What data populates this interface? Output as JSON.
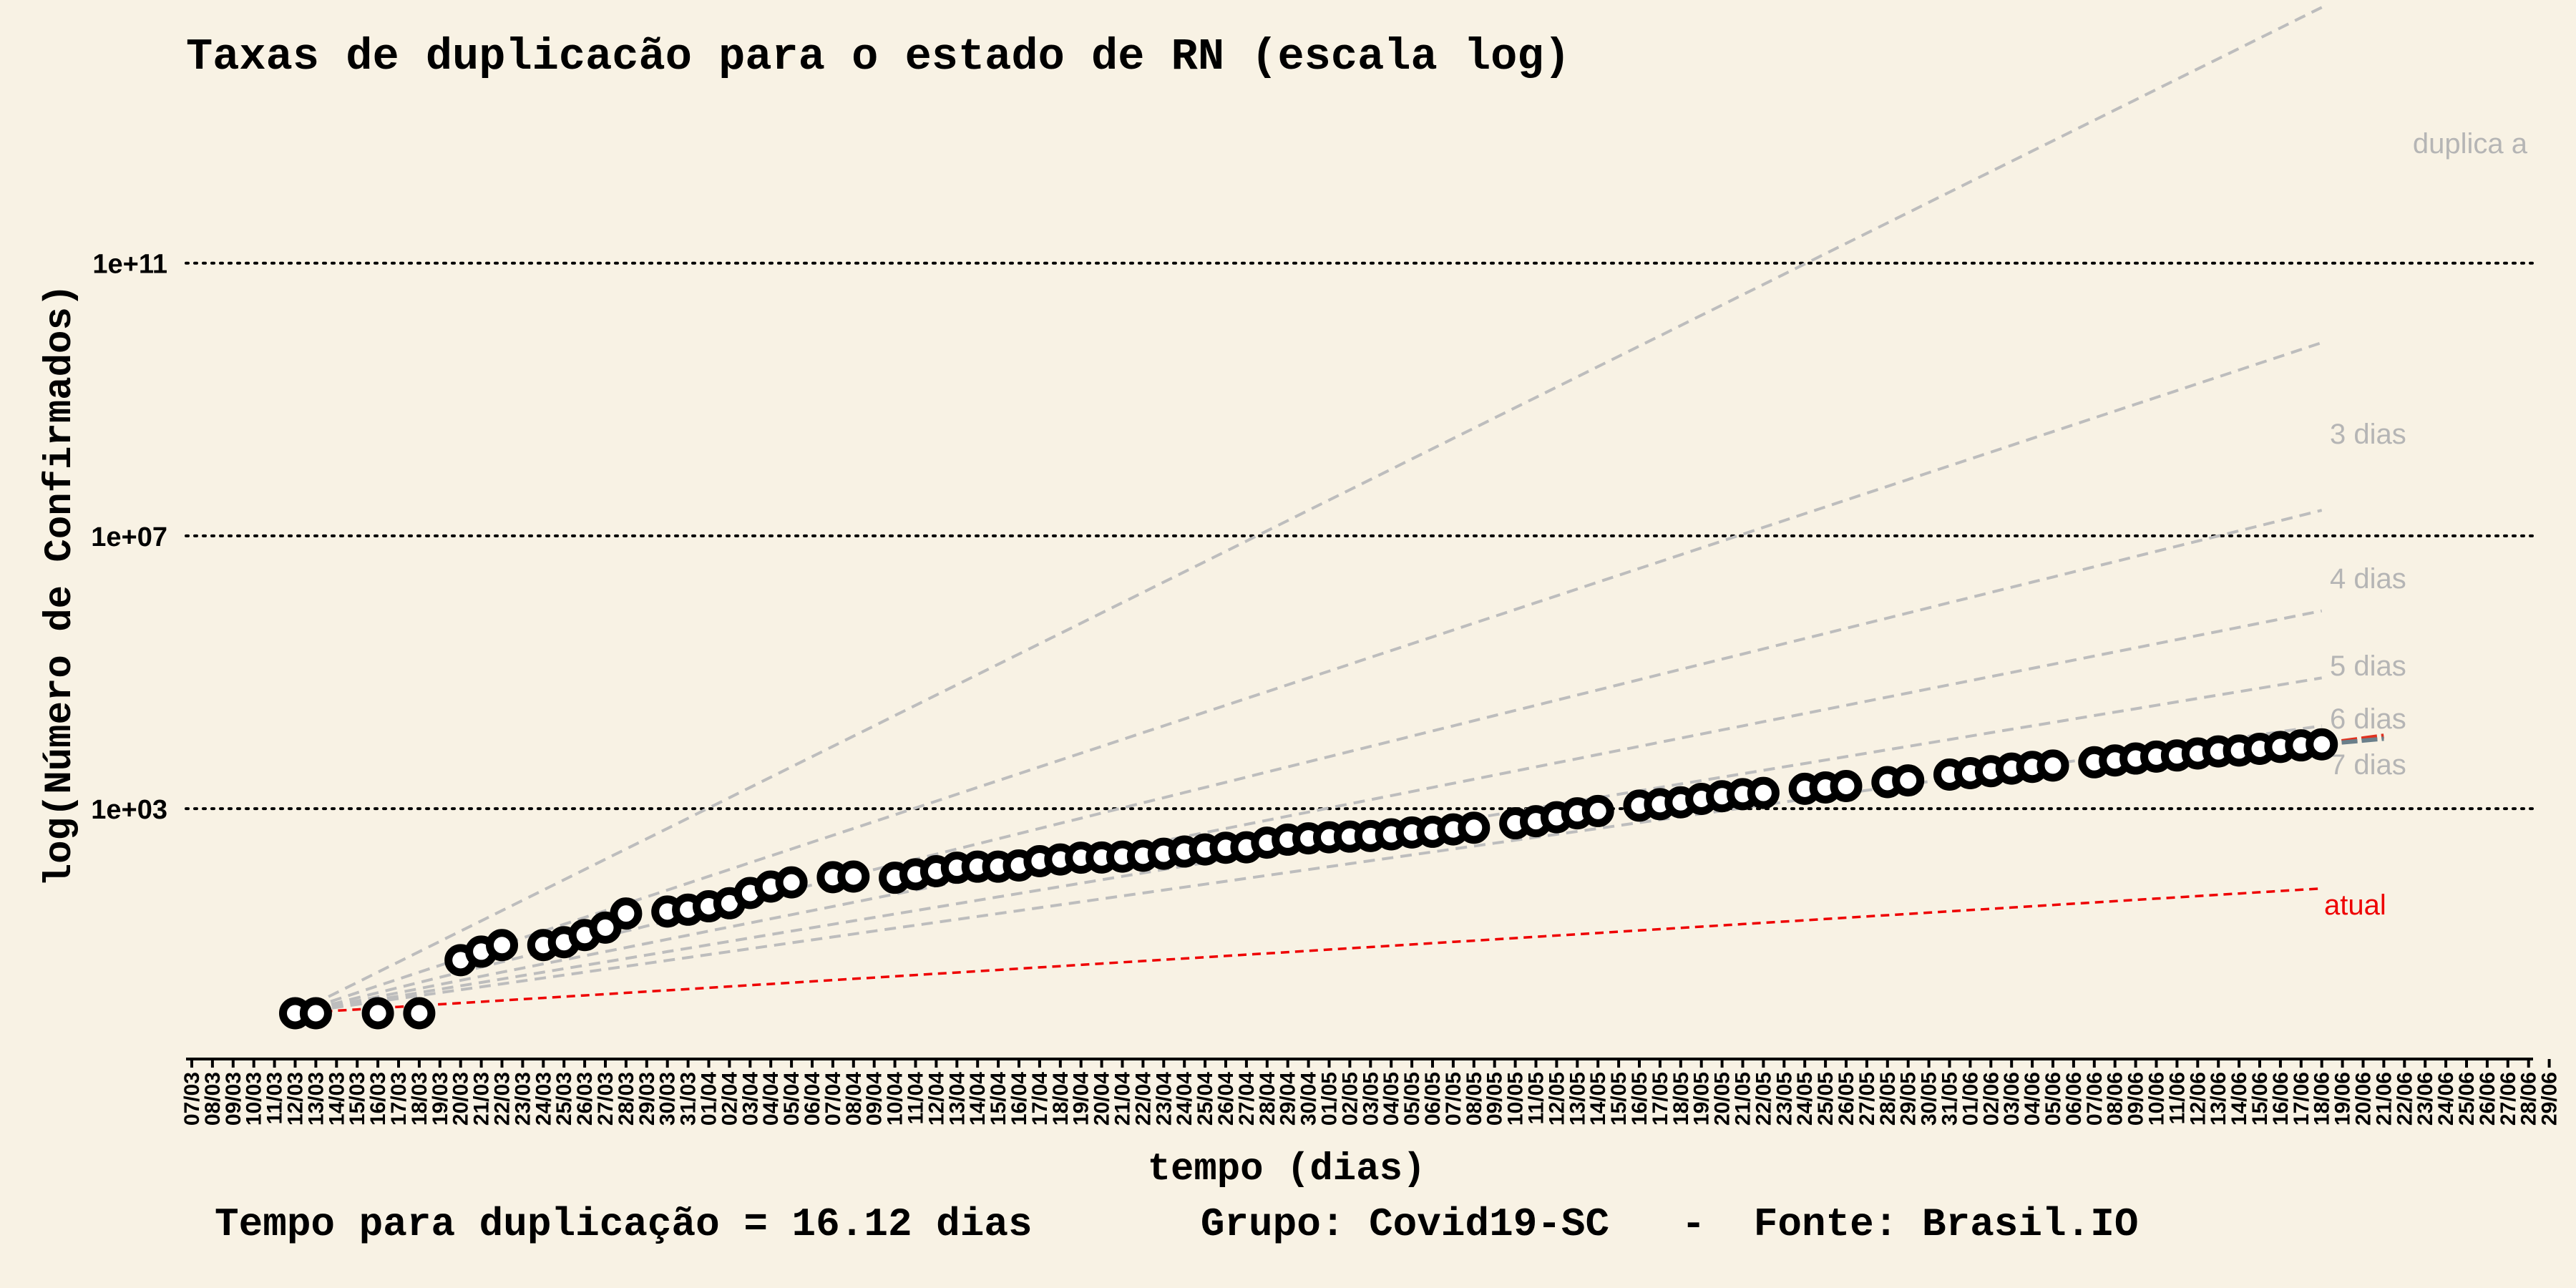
{
  "chart_data": {
    "type": "scatter",
    "title": "Taxas de duplicacão para o estado de RN  (escala log)",
    "xlabel": "tempo (dias)",
    "ylabel": "log(Número de Confirmados)",
    "caption": "Tempo para duplicação = 16.12 dias       Grupo: Covid19-SC   -  Fonte: Brasil.IO",
    "y_scale": "log10",
    "y_ticks": [
      {
        "value": 1000,
        "label": "1e+03"
      },
      {
        "value": 10000000,
        "label": "1e+07"
      },
      {
        "value": 100000000000,
        "label": "1e+11"
      }
    ],
    "x_ticks": [
      "07/03",
      "08/03",
      "09/03",
      "10/03",
      "11/03",
      "12/03",
      "13/03",
      "14/03",
      "15/03",
      "16/03",
      "17/03",
      "18/03",
      "19/03",
      "20/03",
      "21/03",
      "22/03",
      "23/03",
      "24/03",
      "25/03",
      "26/03",
      "27/03",
      "28/03",
      "29/03",
      "30/03",
      "31/03",
      "01/04",
      "02/04",
      "03/04",
      "04/04",
      "05/04",
      "06/04",
      "07/04",
      "08/04",
      "09/04",
      "10/04",
      "11/04",
      "12/04",
      "13/04",
      "14/04",
      "15/04",
      "16/04",
      "17/04",
      "18/04",
      "19/04",
      "20/04",
      "21/04",
      "22/04",
      "23/04",
      "24/04",
      "25/04",
      "26/04",
      "27/04",
      "28/04",
      "29/04",
      "30/04",
      "01/05",
      "02/05",
      "03/05",
      "04/05",
      "05/05",
      "06/05",
      "07/05",
      "08/05",
      "09/05",
      "10/05",
      "11/05",
      "12/05",
      "13/05",
      "14/05",
      "15/05",
      "16/05",
      "17/05",
      "18/05",
      "19/05",
      "20/05",
      "21/05",
      "22/05",
      "23/05",
      "24/05",
      "25/05",
      "26/05",
      "27/05",
      "28/05",
      "29/05",
      "30/05",
      "31/05",
      "01/06",
      "02/06",
      "03/06",
      "04/06",
      "05/06",
      "06/06",
      "07/06",
      "08/06",
      "09/06",
      "10/06",
      "11/06",
      "12/06",
      "13/06",
      "14/06",
      "15/06",
      "16/06",
      "17/06",
      "18/06",
      "19/06",
      "20/06",
      "21/06",
      "22/06",
      "23/06",
      "24/06",
      "25/06",
      "26/06",
      "27/06",
      "28/06",
      "29/06"
    ],
    "grid": "horizontal dotted",
    "series": [
      {
        "name": "confirmados",
        "x": [
          "12/03",
          "13/03",
          "16/03",
          "18/03",
          "20/03",
          "21/03",
          "22/03",
          "24/03",
          "25/03",
          "26/03",
          "27/03",
          "28/03",
          "30/03",
          "31/03",
          "01/04",
          "02/04",
          "03/04",
          "04/04",
          "05/04",
          "07/04",
          "08/04",
          "10/04",
          "11/04",
          "12/04",
          "13/04",
          "14/04",
          "15/04",
          "16/04",
          "17/04",
          "18/04",
          "19/04",
          "20/04",
          "21/04",
          "22/04",
          "23/04",
          "24/04",
          "25/04",
          "26/04",
          "27/04",
          "28/04",
          "29/04",
          "30/04",
          "01/05",
          "02/05",
          "03/05",
          "04/05",
          "05/05",
          "06/05",
          "07/05",
          "08/05",
          "10/05",
          "11/05",
          "12/05",
          "13/05",
          "14/05",
          "16/05",
          "17/05",
          "18/05",
          "19/05",
          "20/05",
          "21/05",
          "22/05",
          "24/05",
          "25/05",
          "26/05",
          "28/05",
          "29/05",
          "31/05",
          "01/06",
          "02/06",
          "03/06",
          "04/06",
          "05/06",
          "07/06",
          "08/06",
          "09/06",
          "10/06",
          "11/06",
          "12/06",
          "13/06",
          "14/06",
          "15/06",
          "16/06",
          "17/06",
          "18/06"
        ],
        "y": [
          1,
          1,
          1,
          1,
          6,
          8,
          10,
          10,
          11,
          14,
          18,
          29,
          31,
          33,
          37,
          41,
          58,
          72,
          83,
          99,
          101,
          97,
          109,
          121,
          136,
          141,
          141,
          147,
          170,
          180,
          191,
          192,
          198,
          204,
          218,
          235,
          252,
          267,
          271,
          317,
          351,
          367,
          380,
          389,
          397,
          420,
          448,
          458,
          496,
          525,
          610,
          655,
          748,
          855,
          923,
          1108,
          1162,
          1240,
          1391,
          1523,
          1632,
          1703,
          1953,
          2045,
          2146,
          2451,
          2598,
          3159,
          3314,
          3543,
          3866,
          4100,
          4283,
          4787,
          5093,
          5434,
          5803,
          6029,
          6441,
          6901,
          7122,
          7537,
          8033,
          8467,
          8779
        ]
      }
    ],
    "reference_lines": [
      {
        "label": "duplica a",
        "days": 2,
        "start": "12/03",
        "end": "18/06"
      },
      {
        "label": "3 dias",
        "days": 3,
        "start": "12/03",
        "end": "18/06"
      },
      {
        "label": "4 dias",
        "days": 4,
        "start": "12/03",
        "end": "18/06"
      },
      {
        "label": "5 dias",
        "days": 5,
        "start": "12/03",
        "end": "18/06"
      },
      {
        "label": "6 dias",
        "days": 6,
        "start": "12/03",
        "end": "18/06"
      },
      {
        "label": "7 dias",
        "days": 7,
        "start": "12/03",
        "end": "18/06"
      },
      {
        "label": "atual",
        "days": 16.12,
        "start": "12/03",
        "end": "18/06"
      }
    ],
    "projection": {
      "start": "18/06",
      "end": "21/06",
      "y_start": 8779,
      "y_end_high": 11600,
      "y_end_low": 10600
    },
    "colors": {
      "background": "#f8f2e4",
      "points_stroke": "#000000",
      "points_fill": "#ffffff",
      "reference": "#bdbdbd",
      "reference_label": "#b5b5b5",
      "current": "#ee0000",
      "projection_high": "#e0301e",
      "projection_low": "#6a7f8a"
    }
  }
}
